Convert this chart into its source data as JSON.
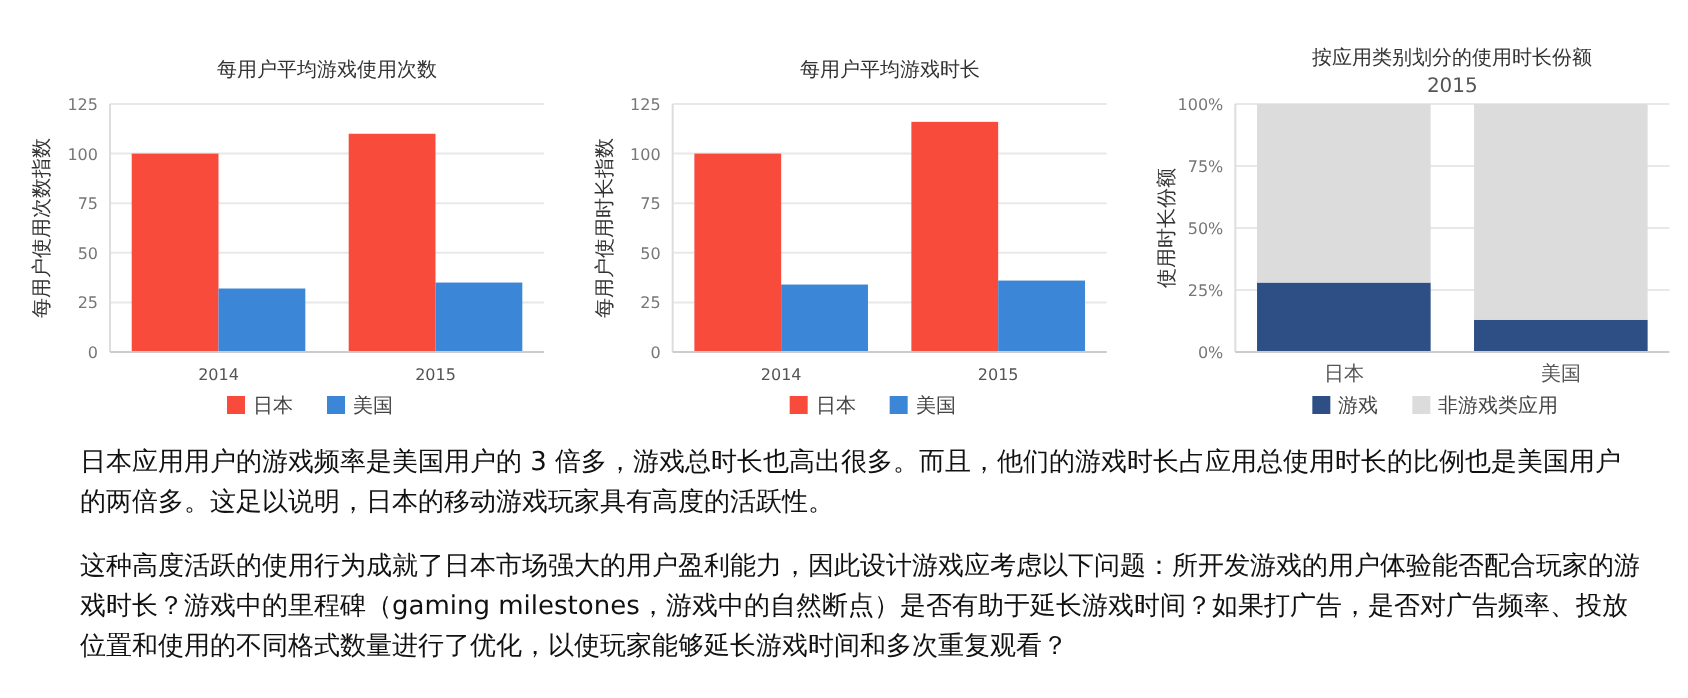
{
  "chart_data": [
    {
      "type": "bar",
      "title": "每用户平均游戏使用次数",
      "ylabel": "每用户使用次数指数",
      "categories": [
        "2014",
        "2015"
      ],
      "series": [
        {
          "name": "日本",
          "color": "#f94b3c",
          "values": [
            100,
            110
          ]
        },
        {
          "name": "美国",
          "color": "#3b86d6",
          "values": [
            32,
            35
          ]
        }
      ],
      "ylim": [
        0,
        125
      ],
      "yticks": [
        0,
        25,
        50,
        75,
        100,
        125
      ],
      "grid": "y",
      "legend": "bottom"
    },
    {
      "type": "bar",
      "title": "每用户平均游戏时长",
      "ylabel": "每用户使用时长指数",
      "categories": [
        "2014",
        "2015"
      ],
      "series": [
        {
          "name": "日本",
          "color": "#f94b3c",
          "values": [
            100,
            116
          ]
        },
        {
          "name": "美国",
          "color": "#3b86d6",
          "values": [
            34,
            36
          ]
        }
      ],
      "ylim": [
        0,
        125
      ],
      "yticks": [
        0,
        25,
        50,
        75,
        100,
        125
      ],
      "grid": "y",
      "legend": "bottom"
    },
    {
      "type": "bar",
      "title": "按应用类别划分的使用时长份额",
      "subtitle": "2015",
      "ylabel": "使用时长份额",
      "categories": [
        "日本",
        "美国"
      ],
      "stacked": true,
      "series": [
        {
          "name": "游戏",
          "color": "#2d4f85",
          "values": [
            28,
            13
          ]
        },
        {
          "name": "非游戏类应用",
          "color": "#dcdcdc",
          "values": [
            72,
            87
          ]
        }
      ],
      "ylim": [
        0,
        100
      ],
      "yticks": [
        {
          "value": 0,
          "label": "0%"
        },
        {
          "value": 25,
          "label": "25%"
        },
        {
          "value": 50,
          "label": "50%"
        },
        {
          "value": 75,
          "label": "75%"
        },
        {
          "value": 100,
          "label": "100%"
        }
      ],
      "grid": "y",
      "legend": "bottom"
    },
    {
      "type": "other",
      "annotations": [
        "日本应用用户的游戏频率是美国用户的 3 倍多，游戏总时长也高出很多。而且，他们的游戏时长占应用总使用时长的比例也是美国用户的两倍多。这足以说明，日本的移动游戏玩家具有高度的活跃性。",
        "这种高度活跃的使用行为成就了日本市场强大的用户盈利能力，因此设计游戏应考虑以下问题：所开发游戏的用户体验能否配合玩家的游戏时长？游戏中的里程碑（gaming milestones，游戏中的自然断点）是否有助于延长游戏时间？如果打广告，是否对广告频率、投放位置和使用的不同格式数量进行了优化，以使玩家能够延长游戏时间和多次重复观看？"
      ]
    }
  ]
}
